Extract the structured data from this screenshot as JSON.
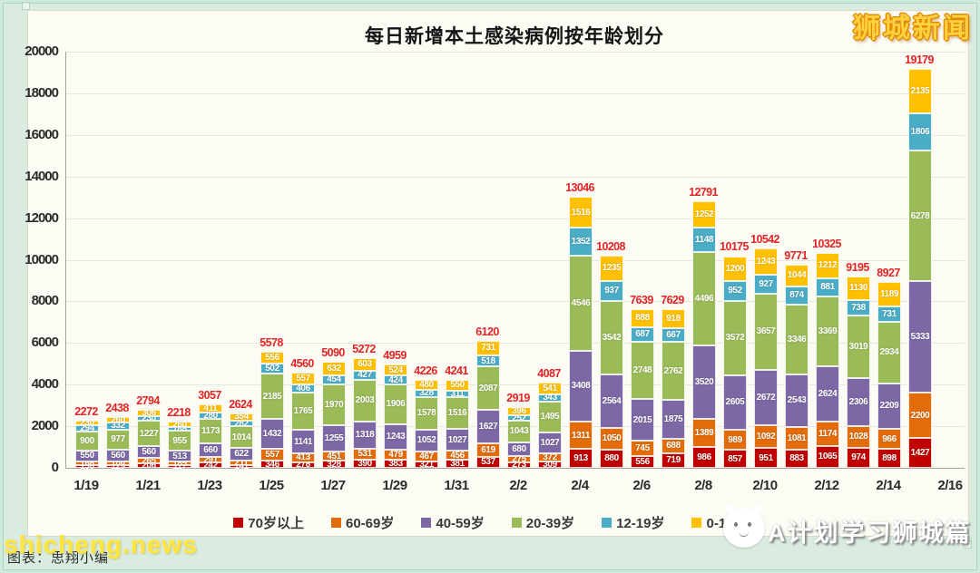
{
  "brand": "狮城新闻",
  "watermarks": {
    "site": "shicheng.news",
    "source_note": "图表：思翔小编",
    "channel": "A计划学习狮城篇"
  },
  "chart_data": {
    "type": "bar",
    "stacked": true,
    "title": "每日新增本土感染病例按年龄划分",
    "xlabel": "",
    "ylabel": "",
    "ylim": [
      0,
      20000
    ],
    "ytick_step": 2000,
    "grid": true,
    "legend_position": "bottom",
    "total_label_color": "#e22424",
    "categories": [
      "1/19",
      "1/20",
      "1/21",
      "1/22",
      "1/23",
      "1/24",
      "1/25",
      "1/26",
      "1/27",
      "1/28",
      "1/29",
      "1/30",
      "1/31",
      "2/1",
      "2/2",
      "2/3",
      "2/4",
      "2/5",
      "2/6",
      "2/7",
      "2/8",
      "2/9",
      "2/10",
      "2/11",
      "2/12",
      "2/13",
      "2/14",
      "2/15"
    ],
    "xtick_labels": [
      "1/19",
      "1/21",
      "1/23",
      "1/25",
      "1/27",
      "1/29",
      "1/31",
      "2/2",
      "2/4",
      "2/6",
      "2/8",
      "2/10",
      "2/12",
      "2/14",
      "2/16"
    ],
    "totals": [
      2272,
      2438,
      2794,
      2218,
      3057,
      2624,
      5578,
      4560,
      5090,
      5272,
      4959,
      4226,
      4241,
      6120,
      2919,
      4087,
      13046,
      10208,
      7639,
      7629,
      12791,
      10175,
      10542,
      9771,
      10325,
      9195,
      8927,
      19179
    ],
    "series": [
      {
        "name": "70岁以上",
        "color": "#C00000",
        "values": [
          130,
          129,
          206,
          117,
          242,
          141,
          346,
          278,
          328,
          390,
          383,
          321,
          381,
          537,
          273,
          309,
          913,
          880,
          556,
          719,
          986,
          857,
          951,
          883,
          1065,
          974,
          898,
          1427
        ]
      },
      {
        "name": "60-69岁",
        "color": "#E36C0A",
        "values": [
          168,
          180,
          265,
          185,
          291,
          211,
          557,
          413,
          451,
          531,
          479,
          467,
          456,
          619,
          275,
          372,
          1311,
          1050,
          745,
          688,
          1389,
          989,
          1092,
          1081,
          1174,
          1028,
          966,
          2200
        ]
      },
      {
        "name": "40-59岁",
        "color": "#7C68A4",
        "values": [
          550,
          560,
          560,
          513,
          660,
          622,
          1432,
          1141,
          1255,
          1318,
          1243,
          1052,
          1027,
          1627,
          680,
          1027,
          3408,
          2564,
          2015,
          1875,
          3520,
          2605,
          2672,
          2543,
          2624,
          2306,
          2209,
          5333
        ]
      },
      {
        "name": "20-39岁",
        "color": "#9BBB59",
        "values": [
          900,
          977,
          1227,
          955,
          1173,
          1014,
          2185,
          1765,
          1970,
          2003,
          1906,
          1578,
          1516,
          2087,
          1043,
          1495,
          4546,
          3542,
          2748,
          2762,
          4496,
          3572,
          3657,
          3346,
          3369,
          3019,
          2934,
          6278
        ]
      },
      {
        "name": "12-19岁",
        "color": "#4BACC6",
        "values": [
          294,
          332,
          230,
          188,
          280,
          282,
          502,
          406,
          454,
          427,
          424,
          328,
          311,
          518,
          252,
          343,
          1352,
          937,
          687,
          667,
          1148,
          952,
          927,
          874,
          881,
          738,
          731,
          1806
        ]
      },
      {
        "name": "0-11岁",
        "color": "#FFC000",
        "values": [
          230,
          260,
          306,
          260,
          411,
          354,
          556,
          557,
          632,
          603,
          524,
          480,
          550,
          731,
          396,
          541,
          1516,
          1235,
          888,
          918,
          1252,
          1200,
          1243,
          1044,
          1212,
          1130,
          1189,
          2135
        ]
      }
    ]
  }
}
